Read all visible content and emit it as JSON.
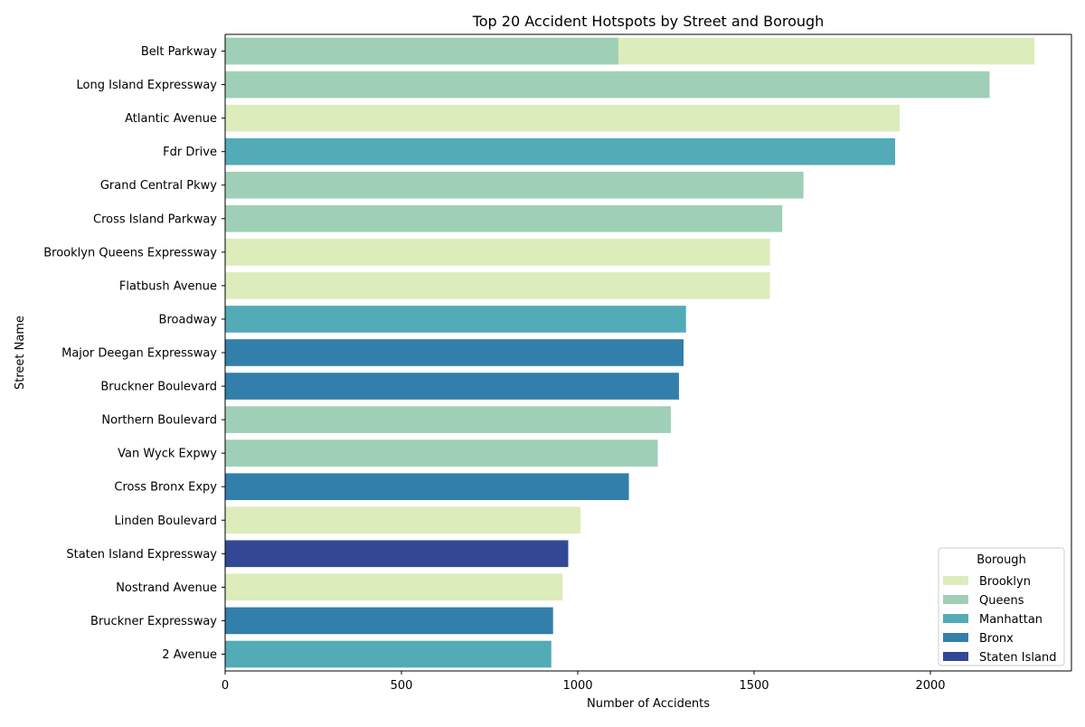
{
  "chart_data": {
    "type": "bar",
    "orientation": "horizontal",
    "title": "Top 20 Accident Hotspots by Street and Borough",
    "xlabel": "Number of Accidents",
    "ylabel": "Street Name",
    "xlim": [
      0,
      2400
    ],
    "xticks": [
      0,
      500,
      1000,
      1500,
      2000
    ],
    "grid": false,
    "legend": {
      "title": "Borough",
      "placement": "lower-right",
      "entries": [
        {
          "name": "Brooklyn",
          "color": "#ddecbb"
        },
        {
          "name": "Queens",
          "color": "#a0cfb7"
        },
        {
          "name": "Manhattan",
          "color": "#52abb6"
        },
        {
          "name": "Bronx",
          "color": "#327fab"
        },
        {
          "name": "Staten Island",
          "color": "#334895"
        }
      ]
    },
    "categories": [
      "Belt Parkway",
      "Long Island Expressway",
      "Atlantic Avenue",
      "Fdr Drive",
      "Grand Central Pkwy",
      "Cross Island Parkway",
      "Brooklyn Queens Expressway",
      "Flatbush Avenue",
      "Broadway",
      "Major Deegan Expressway",
      "Bruckner Boulevard",
      "Northern Boulevard",
      "Van Wyck Expwy",
      "Cross Bronx Expy",
      "Linden Boulevard",
      "Staten Island Expressway",
      "Nostrand Avenue",
      "Bruckner Expressway",
      "2 Avenue"
    ],
    "bars": [
      {
        "street": "Belt Parkway",
        "borough": "Brooklyn",
        "value": 2295
      },
      {
        "street": "Belt Parkway",
        "borough": "Queens",
        "value": 1115
      },
      {
        "street": "Long Island Expressway",
        "borough": "Queens",
        "value": 2168
      },
      {
        "street": "Atlantic Avenue",
        "borough": "Brooklyn",
        "value": 1913
      },
      {
        "street": "Fdr Drive",
        "borough": "Manhattan",
        "value": 1900
      },
      {
        "street": "Grand Central Pkwy",
        "borough": "Queens",
        "value": 1640
      },
      {
        "street": "Cross Island Parkway",
        "borough": "Queens",
        "value": 1580
      },
      {
        "street": "Brooklyn Queens Expressway",
        "borough": "Brooklyn",
        "value": 1545
      },
      {
        "street": "Flatbush Avenue",
        "borough": "Brooklyn",
        "value": 1545
      },
      {
        "street": "Broadway",
        "borough": "Manhattan",
        "value": 1307
      },
      {
        "street": "Major Deegan Expressway",
        "borough": "Bronx",
        "value": 1300
      },
      {
        "street": "Bruckner Boulevard",
        "borough": "Bronx",
        "value": 1287
      },
      {
        "street": "Northern Boulevard",
        "borough": "Queens",
        "value": 1264
      },
      {
        "street": "Van Wyck Expwy",
        "borough": "Queens",
        "value": 1227
      },
      {
        "street": "Cross Bronx Expy",
        "borough": "Bronx",
        "value": 1145
      },
      {
        "street": "Linden Boulevard",
        "borough": "Brooklyn",
        "value": 1008
      },
      {
        "street": "Staten Island Expressway",
        "borough": "Staten Island",
        "value": 973
      },
      {
        "street": "Nostrand Avenue",
        "borough": "Brooklyn",
        "value": 957
      },
      {
        "street": "Bruckner Expressway",
        "borough": "Bronx",
        "value": 930
      },
      {
        "street": "2 Avenue",
        "borough": "Manhattan",
        "value": 925
      }
    ]
  }
}
